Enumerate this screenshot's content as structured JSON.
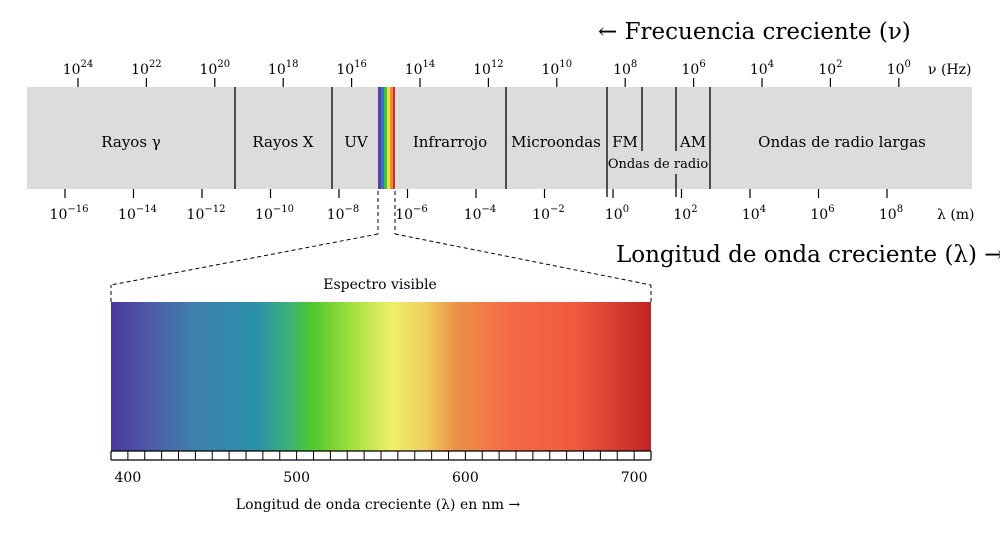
{
  "header": {
    "frequency_title": "← Frecuencia creciente (ν)",
    "wavelength_title": "Longitud de onda creciente (λ) →"
  },
  "frequency_axis": {
    "unit_label": "ν (Hz)",
    "base": "10",
    "exponents": [
      "24",
      "22",
      "20",
      "18",
      "16",
      "14",
      "12",
      "10",
      "8",
      "6",
      "4",
      "2",
      "0"
    ]
  },
  "wavelength_axis": {
    "unit_label": "λ (m)",
    "base": "10",
    "exponents": [
      "−16",
      "−14",
      "−12",
      "−10",
      "−8",
      "−6",
      "−4",
      "−2",
      "0",
      "2",
      "4",
      "6",
      "8"
    ]
  },
  "bands": {
    "gamma": "Rayos γ",
    "xray": "Rayos X",
    "uv": "UV",
    "infrared": "Infrarrojo",
    "microwave": "Microondas",
    "fm": "FM",
    "am": "AM",
    "radio_waves": "Ondas de radio",
    "long_radio": "Ondas de radio largas"
  },
  "visible": {
    "title": "Espectro visible",
    "axis_label": "Longitud de onda creciente (λ) en nm →",
    "nm_ticks": [
      "400",
      "500",
      "600",
      "700"
    ],
    "range_nm": [
      390,
      710
    ]
  },
  "colors": {
    "strip": "#dcdcdc",
    "violet": "#4b3a9a",
    "blue": "#2d8ca8",
    "green": "#4cc933",
    "yellow": "#f2ef64",
    "orange": "#f07a3c",
    "red": "#c02525"
  }
}
